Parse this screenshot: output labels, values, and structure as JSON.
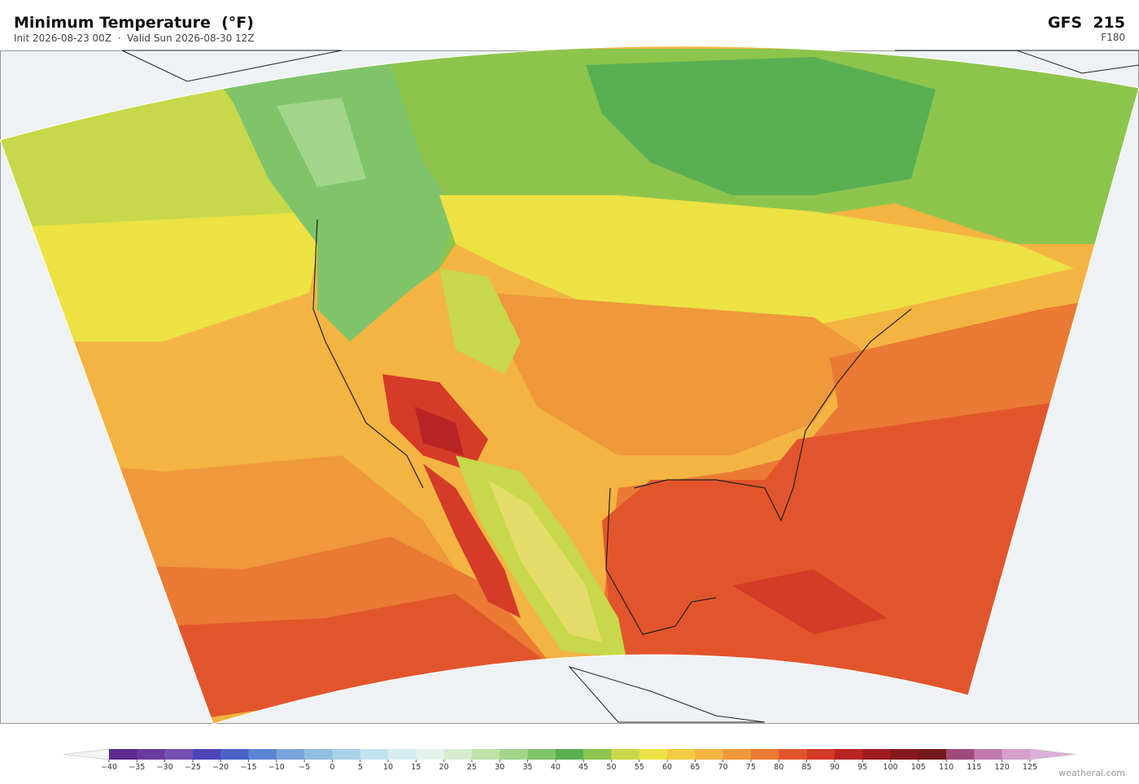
{
  "header": {
    "title": "Minimum Temperature  (°F)",
    "subtitle": "Init 2026-08-23 00Z  ·  Valid Sun 2026-08-30 12Z",
    "model": "GFS  215",
    "forecast_hour": "F180"
  },
  "colorbar": {
    "ticks": [
      {
        "value": -40,
        "label": "−40"
      },
      {
        "value": -35,
        "label": "−35"
      },
      {
        "value": -30,
        "label": "−30"
      },
      {
        "value": -25,
        "label": "−25"
      },
      {
        "value": -20,
        "label": "−20"
      },
      {
        "value": -15,
        "label": "−15"
      },
      {
        "value": -10,
        "label": "−10"
      },
      {
        "value": -5,
        "label": "−5"
      },
      0,
      5,
      10,
      15,
      20,
      25,
      30,
      35,
      40,
      45,
      50,
      55,
      60,
      65,
      70,
      75,
      80,
      85,
      90,
      95,
      100,
      105,
      110,
      115,
      120,
      125
    ],
    "colors": [
      "#5b2a8c",
      "#6a3a9c",
      "#7452b0",
      "#4b45b8",
      "#4c62c8",
      "#5c86d4",
      "#7aa3dc",
      "#92bde2",
      "#a9d2e8",
      "#c1e2ef",
      "#d6ecf0",
      "#e4f3ec",
      "#d8ecd0",
      "#bfe2a6",
      "#a2d58a",
      "#7fc46a",
      "#58b052",
      "#8dc54c",
      "#c7d84a",
      "#ece244",
      "#f2cc44",
      "#f3b442",
      "#ef983c",
      "#ea7a34",
      "#e2552c",
      "#d43b28",
      "#b82424",
      "#9c1c20",
      "#84181c",
      "#731a1c",
      "#a04a7a",
      "#c07ab0",
      "#d7a0cc"
    ],
    "under_color": "#f4f4f4",
    "over_color": "#dcb0d8"
  },
  "footer": {
    "credit": "weatherai.com"
  }
}
